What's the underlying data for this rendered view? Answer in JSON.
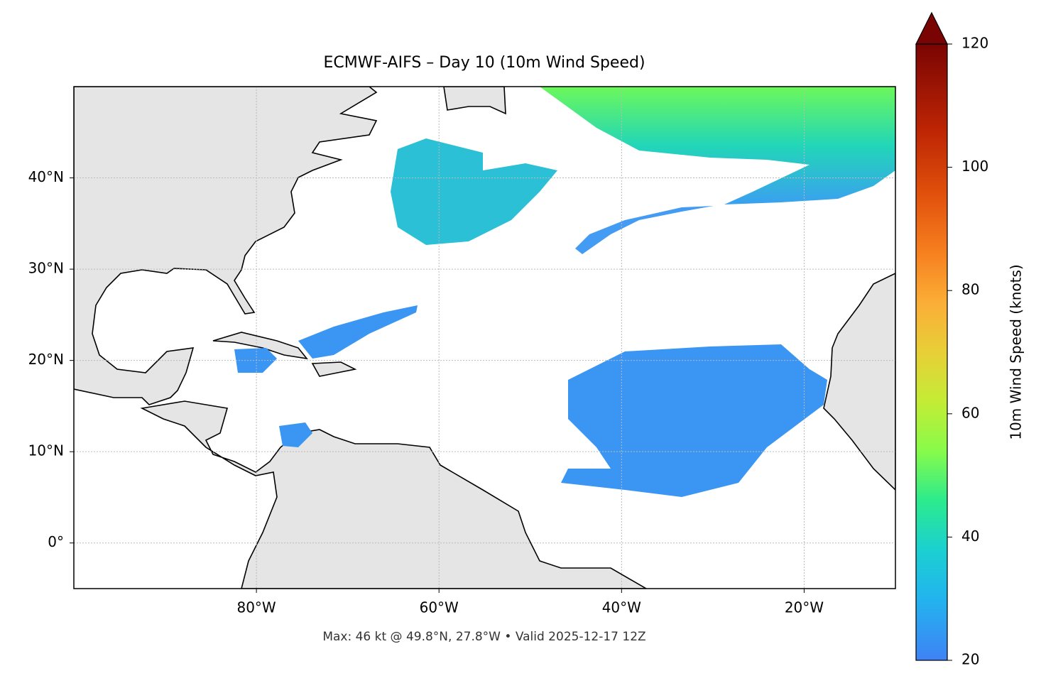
{
  "map": {
    "title": "ECMWF-AIFS – Day 10 (10m Wind Speed)",
    "footer": "Max: 46 kt @ 49.8°N, 27.8°W • Valid 2025-12-17 12Z",
    "lon_range": [
      -100,
      -10
    ],
    "lat_range": [
      -5,
      50
    ],
    "xticks": [
      {
        "value": -80,
        "label": "80°W"
      },
      {
        "value": -60,
        "label": "60°W"
      },
      {
        "value": -40,
        "label": "40°W"
      },
      {
        "value": -20,
        "label": "20°W"
      }
    ],
    "yticks": [
      {
        "value": 0,
        "label": "0°"
      },
      {
        "value": 10,
        "label": "10°N"
      },
      {
        "value": 20,
        "label": "20°N"
      },
      {
        "value": 30,
        "label": "30°N"
      },
      {
        "value": 40,
        "label": "40°N"
      }
    ],
    "grid": true
  },
  "colorbar": {
    "label": "10m Wind Speed (knots)",
    "range": [
      20,
      120
    ],
    "ticks": [
      20,
      40,
      60,
      80,
      100,
      120
    ]
  }
}
